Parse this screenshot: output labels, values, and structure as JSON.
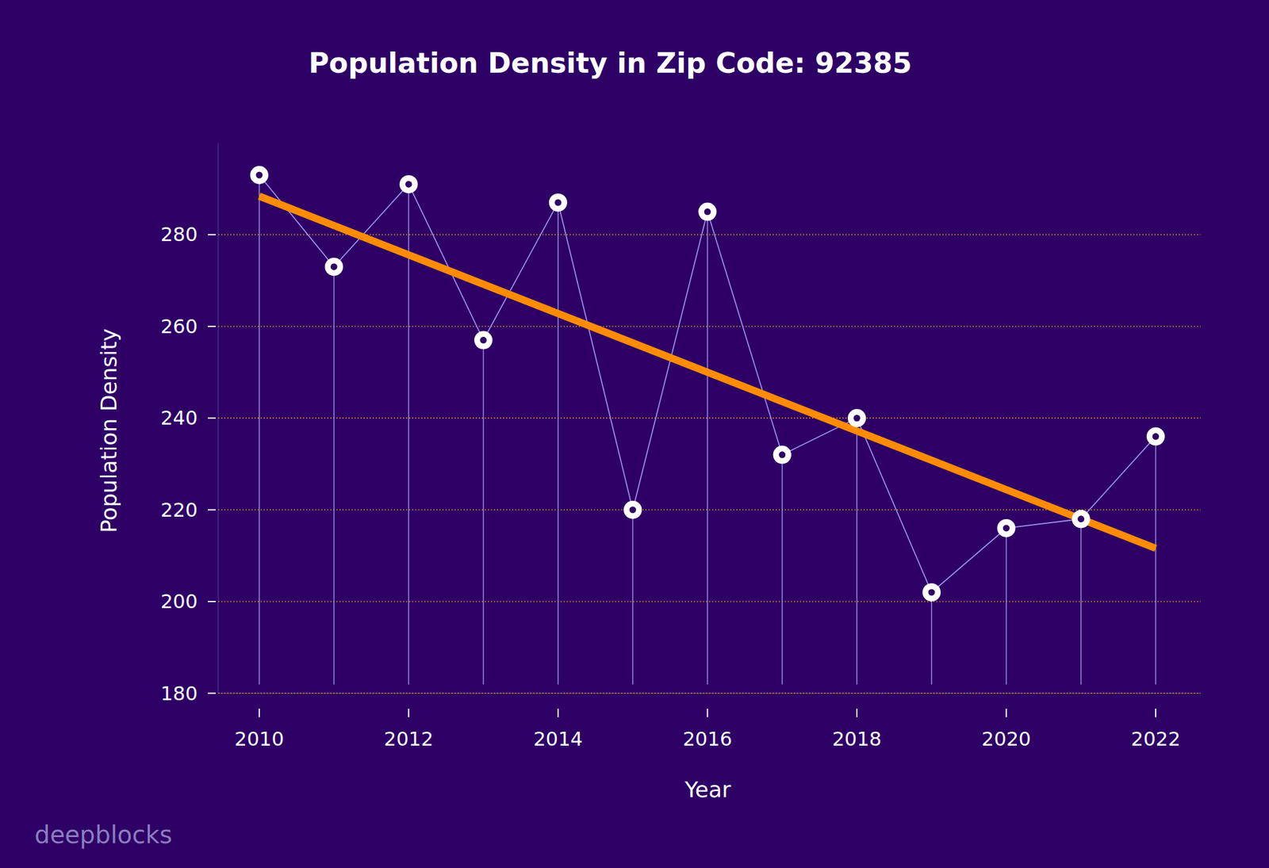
{
  "chart_data": {
    "type": "line",
    "title": "Population Density in Zip Code: 92385",
    "x_label": "Year",
    "y_label": "Population Density",
    "watermark": "deepblocks",
    "x": [
      2010,
      2011,
      2012,
      2013,
      2014,
      2015,
      2016,
      2017,
      2018,
      2019,
      2020,
      2021,
      2022
    ],
    "values": [
      293,
      273,
      291,
      257,
      287,
      220,
      285,
      232,
      240,
      202,
      216,
      218,
      236
    ],
    "color": "#9d8fe6",
    "marker": "circle",
    "grid": true,
    "trend": {
      "x": [
        2010,
        2022
      ],
      "values": [
        288.4,
        211.6
      ],
      "color": "#ff8c00"
    },
    "xlim": [
      2009.45,
      2022.6
    ],
    "xticks": [
      2010,
      2012,
      2014,
      2016,
      2018,
      2020,
      2022
    ],
    "ylim": [
      180,
      300
    ],
    "yticks": [
      180,
      200,
      220,
      240,
      260,
      280
    ]
  }
}
